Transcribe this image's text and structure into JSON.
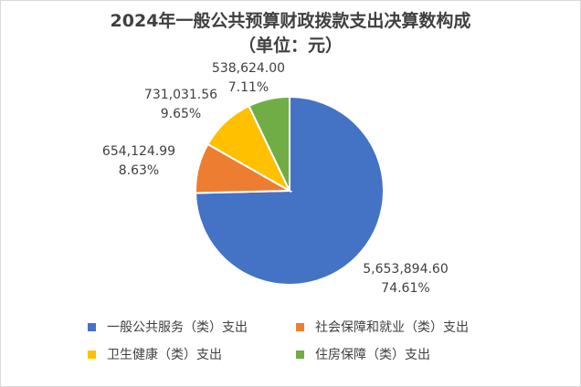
{
  "chart_data": {
    "type": "pie",
    "title": "2024年一般公共预算财政拨款支出决算数构成",
    "subtitle": "（单位：元）",
    "slices": [
      {
        "name": "一般公共服务（类）支出",
        "value": 5653894.6,
        "value_label": "5,653,894.60",
        "percent_label": "74.61%",
        "color": "#4472C4"
      },
      {
        "name": "社会保障和就业（类）支出",
        "value": 654124.99,
        "value_label": "654,124.99",
        "percent_label": "8.63%",
        "color": "#ED7D31"
      },
      {
        "name": "卫生健康（类）支出",
        "value": 731031.56,
        "value_label": "731,031.56",
        "percent_label": "9.65%",
        "color": "#FFC000"
      },
      {
        "name": "住房保障（类）支出",
        "value": 538624.0,
        "value_label": "538,624.00",
        "percent_label": "7.11%",
        "color": "#70AD47"
      }
    ],
    "legend_position": "bottom",
    "start_angle_deg": 0,
    "direction": "clockwise"
  }
}
